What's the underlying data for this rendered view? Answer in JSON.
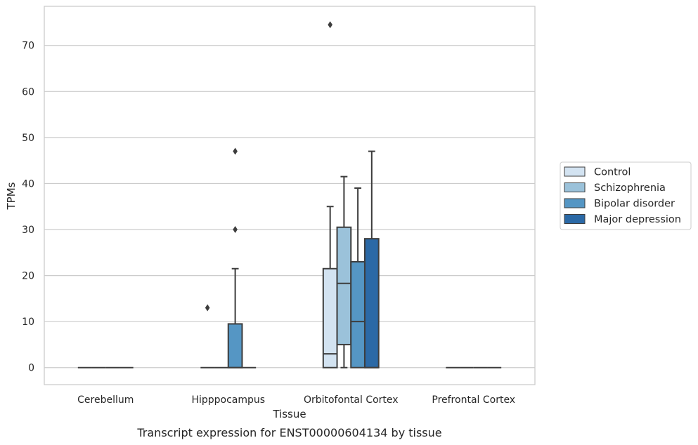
{
  "chart_data": {
    "type": "box",
    "title": "Transcript expression for ENST00000604134 by tissue",
    "xlabel": "Tissue",
    "ylabel": "TPMs",
    "ylim": [
      -3.7,
      78.5
    ],
    "yticks": [
      0,
      10,
      20,
      30,
      40,
      50,
      60,
      70
    ],
    "grid": "horizontal",
    "legend_position": "right",
    "categories": [
      "Cerebellum",
      "Hipppocampus",
      "Orbitofontal Cortex",
      "Prefrontal Cortex"
    ],
    "series": [
      {
        "name": "Control",
        "color": "#d3e3f1",
        "boxes": [
          {
            "category": "Cerebellum",
            "whisker_low": 0,
            "q1": 0,
            "median": 0,
            "q3": 0,
            "whisker_high": 0,
            "outliers": []
          },
          {
            "category": "Hipppocampus",
            "whisker_low": 0,
            "q1": 0,
            "median": 0,
            "q3": 0,
            "whisker_high": 0,
            "outliers": [
              13
            ]
          },
          {
            "category": "Orbitofontal Cortex",
            "whisker_low": 0,
            "q1": 0,
            "median": 3,
            "q3": 21.5,
            "whisker_high": 35,
            "outliers": [
              74.5
            ]
          },
          {
            "category": "Prefrontal Cortex",
            "whisker_low": 0,
            "q1": 0,
            "median": 0,
            "q3": 0,
            "whisker_high": 0,
            "outliers": []
          }
        ]
      },
      {
        "name": "Schizophrenia",
        "color": "#9bc2da",
        "boxes": [
          {
            "category": "Cerebellum",
            "whisker_low": 0,
            "q1": 0,
            "median": 0,
            "q3": 0,
            "whisker_high": 0,
            "outliers": []
          },
          {
            "category": "Hipppocampus",
            "whisker_low": 0,
            "q1": 0,
            "median": 0,
            "q3": 0,
            "whisker_high": 0,
            "outliers": []
          },
          {
            "category": "Orbitofontal Cortex",
            "whisker_low": 0,
            "q1": 5,
            "median": 18.3,
            "q3": 30.5,
            "whisker_high": 41.5,
            "outliers": []
          },
          {
            "category": "Prefrontal Cortex",
            "whisker_low": 0,
            "q1": 0,
            "median": 0,
            "q3": 0,
            "whisker_high": 0,
            "outliers": []
          }
        ]
      },
      {
        "name": "Bipolar disorder",
        "color": "#5596c4",
        "boxes": [
          {
            "category": "Cerebellum",
            "whisker_low": 0,
            "q1": 0,
            "median": 0,
            "q3": 0,
            "whisker_high": 0,
            "outliers": []
          },
          {
            "category": "Hipppocampus",
            "whisker_low": 0,
            "q1": 0,
            "median": 0,
            "q3": 9.5,
            "whisker_high": 21.5,
            "outliers": [
              30,
              47
            ]
          },
          {
            "category": "Orbitofontal Cortex",
            "whisker_low": 0,
            "q1": 0,
            "median": 10,
            "q3": 23,
            "whisker_high": 39,
            "outliers": []
          },
          {
            "category": "Prefrontal Cortex",
            "whisker_low": 0,
            "q1": 0,
            "median": 0,
            "q3": 0,
            "whisker_high": 0,
            "outliers": []
          }
        ]
      },
      {
        "name": "Major depression",
        "color": "#2b69a6",
        "boxes": [
          {
            "category": "Cerebellum",
            "whisker_low": 0,
            "q1": 0,
            "median": 0,
            "q3": 0,
            "whisker_high": 0,
            "outliers": []
          },
          {
            "category": "Hipppocampus",
            "whisker_low": 0,
            "q1": 0,
            "median": 0,
            "q3": 0,
            "whisker_high": 0,
            "outliers": []
          },
          {
            "category": "Orbitofontal Cortex",
            "whisker_low": 0,
            "q1": 0,
            "median": 0,
            "q3": 28,
            "whisker_high": 47,
            "outliers": []
          },
          {
            "category": "Prefrontal Cortex",
            "whisker_low": 0,
            "q1": 0,
            "median": 0,
            "q3": 0,
            "whisker_high": 0,
            "outliers": []
          }
        ]
      }
    ]
  }
}
